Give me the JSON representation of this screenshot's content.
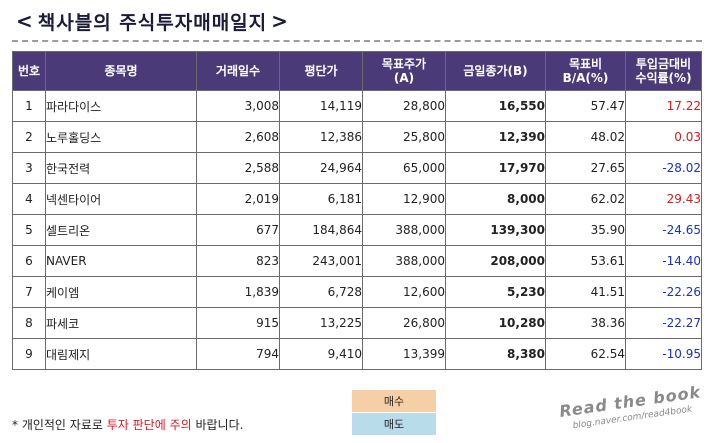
{
  "title": {
    "left_chevron": "<",
    "text": "책사블의 주식투자매매일지",
    "right_chevron": ">"
  },
  "table": {
    "headers": [
      {
        "line1": "번호",
        "line2": ""
      },
      {
        "line1": "종목명",
        "line2": ""
      },
      {
        "line1": "거래일수",
        "line2": ""
      },
      {
        "line1": "평단가",
        "line2": ""
      },
      {
        "line1": "목표주가",
        "line2": "(A)"
      },
      {
        "line1": "금일종가(B)",
        "line2": ""
      },
      {
        "line1": "목표비",
        "line2": "B/A(%)"
      },
      {
        "line1": "투입금대비",
        "line2": "수익률(%)"
      }
    ],
    "rows": [
      {
        "no": "1",
        "name": "파라다이스",
        "days": "3,008",
        "avg": "14,119",
        "target": "28,800",
        "close": "16,550",
        "ratio": "57.47",
        "ret": "17.22",
        "ret_sign": "pos"
      },
      {
        "no": "2",
        "name": "노루홀딩스",
        "days": "2,608",
        "avg": "12,386",
        "target": "25,800",
        "close": "12,390",
        "ratio": "48.02",
        "ret": "0.03",
        "ret_sign": "pos"
      },
      {
        "no": "3",
        "name": "한국전력",
        "days": "2,588",
        "avg": "24,964",
        "target": "65,000",
        "close": "17,970",
        "ratio": "27.65",
        "ret": "-28.02",
        "ret_sign": "neg"
      },
      {
        "no": "4",
        "name": "넥센타이어",
        "days": "2,019",
        "avg": "6,181",
        "target": "12,900",
        "close": "8,000",
        "ratio": "62.02",
        "ret": "29.43",
        "ret_sign": "pos"
      },
      {
        "no": "5",
        "name": "셀트리온",
        "days": "677",
        "avg": "184,864",
        "target": "388,000",
        "close": "139,300",
        "ratio": "35.90",
        "ret": "-24.65",
        "ret_sign": "neg"
      },
      {
        "no": "6",
        "name": "NAVER",
        "days": "823",
        "avg": "243,001",
        "target": "388,000",
        "close": "208,000",
        "ratio": "53.61",
        "ret": "-14.40",
        "ret_sign": "neg"
      },
      {
        "no": "7",
        "name": "케이엠",
        "days": "1,839",
        "avg": "6,728",
        "target": "12,600",
        "close": "5,230",
        "ratio": "41.51",
        "ret": "-22.26",
        "ret_sign": "neg"
      },
      {
        "no": "8",
        "name": "파세코",
        "days": "915",
        "avg": "13,225",
        "target": "26,800",
        "close": "10,280",
        "ratio": "38.36",
        "ret": "-22.27",
        "ret_sign": "neg"
      },
      {
        "no": "9",
        "name": "대림제지",
        "days": "794",
        "avg": "9,410",
        "target": "13,399",
        "close": "8,380",
        "ratio": "62.54",
        "ret": "-10.95",
        "ret_sign": "neg"
      }
    ]
  },
  "colors": {
    "header_bg": "#4a3b78",
    "positive": "#e0161f",
    "negative": "#1a2fcf",
    "buy_bg": "#f7cfa6",
    "sell_bg": "#b8dcea"
  },
  "footer": {
    "note_prefix": "* 개인적인 자료로 ",
    "note_highlight": "투자 판단에 주의",
    "note_suffix": " 바랍니다."
  },
  "legend": {
    "buy": "매수",
    "sell": "매도"
  },
  "watermark": {
    "line1": "Read the book",
    "line2": "blog.naver.com/read4book"
  }
}
